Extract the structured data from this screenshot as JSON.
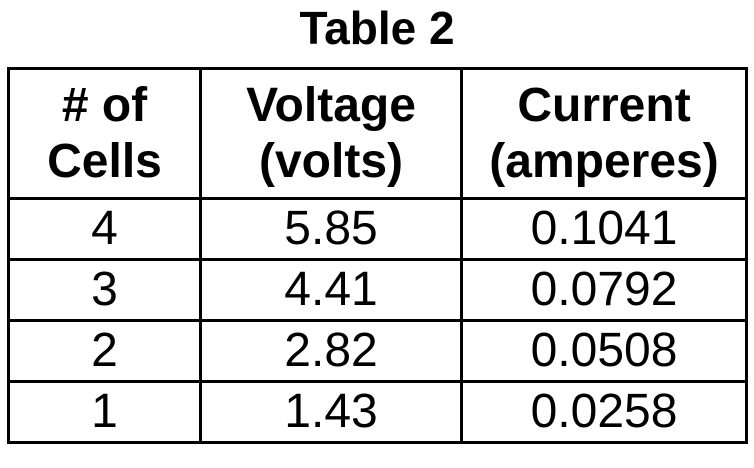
{
  "title": "Table 2",
  "table": {
    "headers": [
      {
        "line1": "# of",
        "line2": "Cells"
      },
      {
        "line1": "Voltage",
        "line2": "(volts)"
      },
      {
        "line1": "Current",
        "line2": "(amperes)"
      }
    ],
    "rows": [
      [
        "4",
        "5.85",
        "0.1041"
      ],
      [
        "3",
        "4.41",
        "0.0792"
      ],
      [
        "2",
        "2.82",
        "0.0508"
      ],
      [
        "1",
        "1.43",
        "0.0258"
      ]
    ]
  }
}
